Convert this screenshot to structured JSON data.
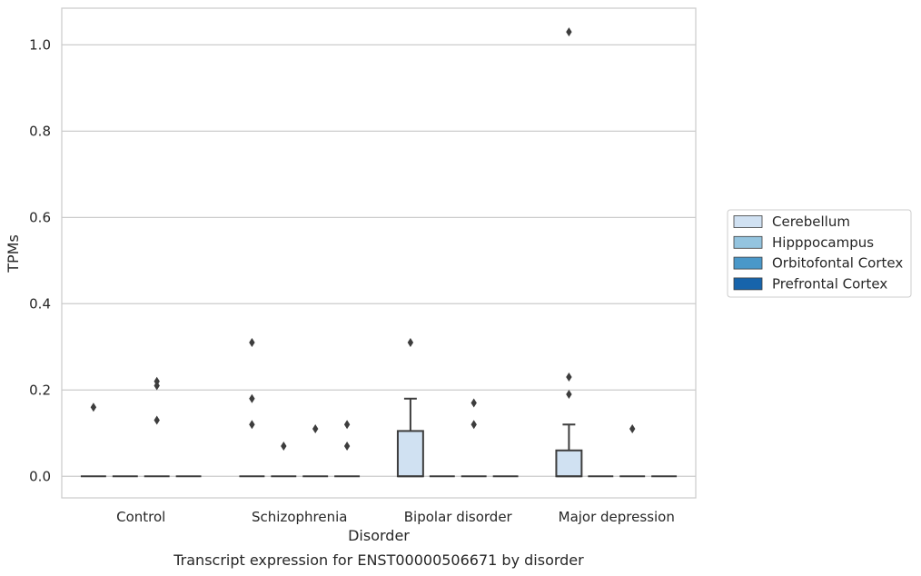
{
  "chart_data": {
    "type": "box",
    "caption": "Transcript expression for ENST00000506671 by disorder",
    "xlabel": "Disorder",
    "ylabel": "TPMs",
    "ylim": [
      -0.05,
      1.085
    ],
    "yticks": [
      0.0,
      0.2,
      0.4,
      0.6,
      0.8,
      1.0
    ],
    "ytick_labels": [
      "0.0",
      "0.2",
      "0.4",
      "0.6",
      "0.8",
      "1.0"
    ],
    "grid": "horizontal",
    "legend_position": "right",
    "categories": [
      "Control",
      "Schizophrenia",
      "Bipolar disorder",
      "Major depression"
    ],
    "series": [
      {
        "name": "Cerebellum",
        "color": "#d0e1f2",
        "boxes": [
          {
            "q1": 0,
            "median": 0,
            "q3": 0,
            "whisker_low": 0,
            "whisker_high": 0,
            "outliers": [
              0.16
            ]
          },
          {
            "q1": 0,
            "median": 0,
            "q3": 0,
            "whisker_low": 0,
            "whisker_high": 0,
            "outliers": [
              0.31,
              0.18,
              0.12
            ]
          },
          {
            "q1": 0,
            "median": 0,
            "q3": 0.105,
            "whisker_low": 0,
            "whisker_high": 0.18,
            "outliers": [
              0.31
            ]
          },
          {
            "q1": 0,
            "median": 0,
            "q3": 0.06,
            "whisker_low": 0,
            "whisker_high": 0.12,
            "outliers": [
              1.03,
              0.23,
              0.19
            ]
          }
        ]
      },
      {
        "name": "Hipppocampus",
        "color": "#94c4df",
        "boxes": [
          {
            "q1": 0,
            "median": 0,
            "q3": 0,
            "whisker_low": 0,
            "whisker_high": 0,
            "outliers": []
          },
          {
            "q1": 0,
            "median": 0,
            "q3": 0,
            "whisker_low": 0,
            "whisker_high": 0,
            "outliers": [
              0.07
            ]
          },
          {
            "q1": 0,
            "median": 0,
            "q3": 0,
            "whisker_low": 0,
            "whisker_high": 0,
            "outliers": []
          },
          {
            "q1": 0,
            "median": 0,
            "q3": 0,
            "whisker_low": 0,
            "whisker_high": 0,
            "outliers": []
          }
        ]
      },
      {
        "name": "Orbitofontal Cortex",
        "color": "#4a98c9",
        "boxes": [
          {
            "q1": 0,
            "median": 0,
            "q3": 0,
            "whisker_low": 0,
            "whisker_high": 0,
            "outliers": [
              0.22,
              0.21,
              0.13
            ]
          },
          {
            "q1": 0,
            "median": 0,
            "q3": 0,
            "whisker_low": 0,
            "whisker_high": 0,
            "outliers": [
              0.11
            ]
          },
          {
            "q1": 0,
            "median": 0,
            "q3": 0,
            "whisker_low": 0,
            "whisker_high": 0,
            "outliers": [
              0.17,
              0.12
            ]
          },
          {
            "q1": 0,
            "median": 0,
            "q3": 0,
            "whisker_low": 0,
            "whisker_high": 0,
            "outliers": [
              0.11
            ]
          }
        ]
      },
      {
        "name": "Prefrontal Cortex",
        "color": "#1764ab",
        "boxes": [
          {
            "q1": 0,
            "median": 0,
            "q3": 0,
            "whisker_low": 0,
            "whisker_high": 0,
            "outliers": []
          },
          {
            "q1": 0,
            "median": 0,
            "q3": 0,
            "whisker_low": 0,
            "whisker_high": 0,
            "outliers": [
              0.12,
              0.07
            ]
          },
          {
            "q1": 0,
            "median": 0,
            "q3": 0,
            "whisker_low": 0,
            "whisker_high": 0,
            "outliers": []
          },
          {
            "q1": 0,
            "median": 0,
            "q3": 0,
            "whisker_low": 0,
            "whisker_high": 0,
            "outliers": []
          }
        ]
      }
    ]
  },
  "colors": {
    "line": "#3d3d3d",
    "grid": "#cccccc",
    "frame": "#cccccc"
  }
}
